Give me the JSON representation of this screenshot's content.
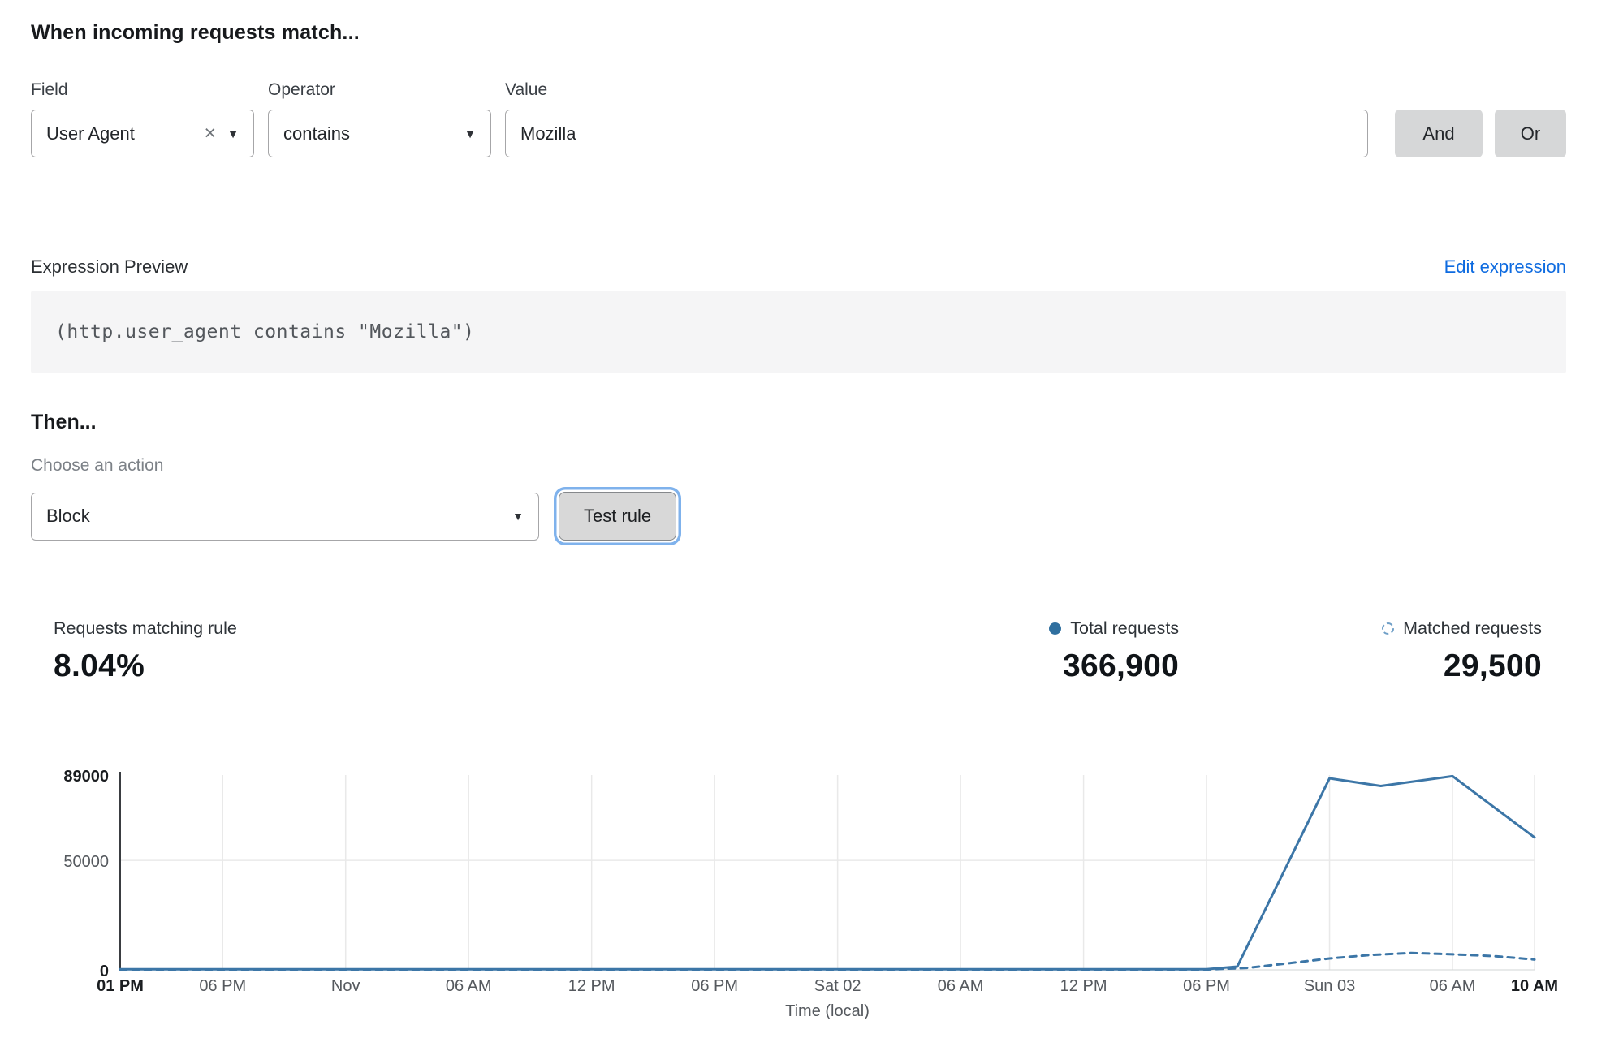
{
  "rule_builder": {
    "heading": "When incoming requests match...",
    "field": {
      "label": "Field",
      "value": "User Agent"
    },
    "operator": {
      "label": "Operator",
      "value": "contains"
    },
    "value": {
      "label": "Value",
      "value": "Mozilla"
    },
    "and_label": "And",
    "or_label": "Or"
  },
  "expression": {
    "label": "Expression Preview",
    "edit_link": "Edit expression",
    "code": "(http.user_agent contains \"Mozilla\")"
  },
  "action": {
    "heading": "Then...",
    "choose_label": "Choose an action",
    "selected": "Block",
    "test_button": "Test rule"
  },
  "stats": {
    "matching_label": "Requests matching rule",
    "matching_value": "8.04%",
    "total_label": "Total requests",
    "total_value": "366,900",
    "matched_label": "Matched requests",
    "matched_value": "29,500"
  },
  "colors": {
    "link": "#0e6be0",
    "line": "#3c76a7",
    "grid": "#e9e9e9",
    "axis": "#3a3d41",
    "focus_ring": "#7fb2ec",
    "legend_solid": "#2f6f9f",
    "legend_dashed": "#6f9fc7"
  },
  "chart_data": {
    "type": "line",
    "xlabel": "Time (local)",
    "ylim": [
      0,
      89000
    ],
    "x_hours_max": 69,
    "grid": true,
    "legend_position": "above-right",
    "y_ticks": [
      {
        "v": 0,
        "label": "0",
        "bold": true
      },
      {
        "v": 50000,
        "label": "50000",
        "bold": false
      },
      {
        "v": 89000,
        "label": "89000",
        "bold": true
      }
    ],
    "x_ticks": [
      {
        "h": 0,
        "label": "01 PM",
        "bold": true
      },
      {
        "h": 5,
        "label": "06 PM"
      },
      {
        "h": 11,
        "label": "Nov"
      },
      {
        "h": 17,
        "label": "06 AM"
      },
      {
        "h": 23,
        "label": "12 PM"
      },
      {
        "h": 29,
        "label": "06 PM"
      },
      {
        "h": 35,
        "label": "Sat 02"
      },
      {
        "h": 41,
        "label": "06 AM"
      },
      {
        "h": 47,
        "label": "12 PM"
      },
      {
        "h": 53,
        "label": "06 PM"
      },
      {
        "h": 59,
        "label": "Sun 03"
      },
      {
        "h": 65,
        "label": "06 AM"
      },
      {
        "h": 69,
        "label": "10 AM",
        "bold": true
      }
    ],
    "series": [
      {
        "name": "Total requests",
        "style": "solid",
        "points": [
          [
            0,
            300
          ],
          [
            5,
            300
          ],
          [
            11,
            300
          ],
          [
            17,
            300
          ],
          [
            23,
            300
          ],
          [
            29,
            300
          ],
          [
            35,
            300
          ],
          [
            41,
            300
          ],
          [
            47,
            300
          ],
          [
            53,
            300
          ],
          [
            54.5,
            1500
          ],
          [
            59,
            87500
          ],
          [
            61.5,
            84000
          ],
          [
            65,
            88500
          ],
          [
            69,
            60500
          ]
        ]
      },
      {
        "name": "Matched requests",
        "style": "dashed",
        "points": [
          [
            0,
            150
          ],
          [
            10,
            150
          ],
          [
            20,
            150
          ],
          [
            30,
            150
          ],
          [
            40,
            150
          ],
          [
            50,
            150
          ],
          [
            53,
            150
          ],
          [
            55,
            900
          ],
          [
            57,
            3000
          ],
          [
            59,
            5200
          ],
          [
            61,
            6800
          ],
          [
            63,
            7700
          ],
          [
            65,
            7100
          ],
          [
            67,
            6300
          ],
          [
            69,
            4700
          ]
        ]
      }
    ]
  }
}
